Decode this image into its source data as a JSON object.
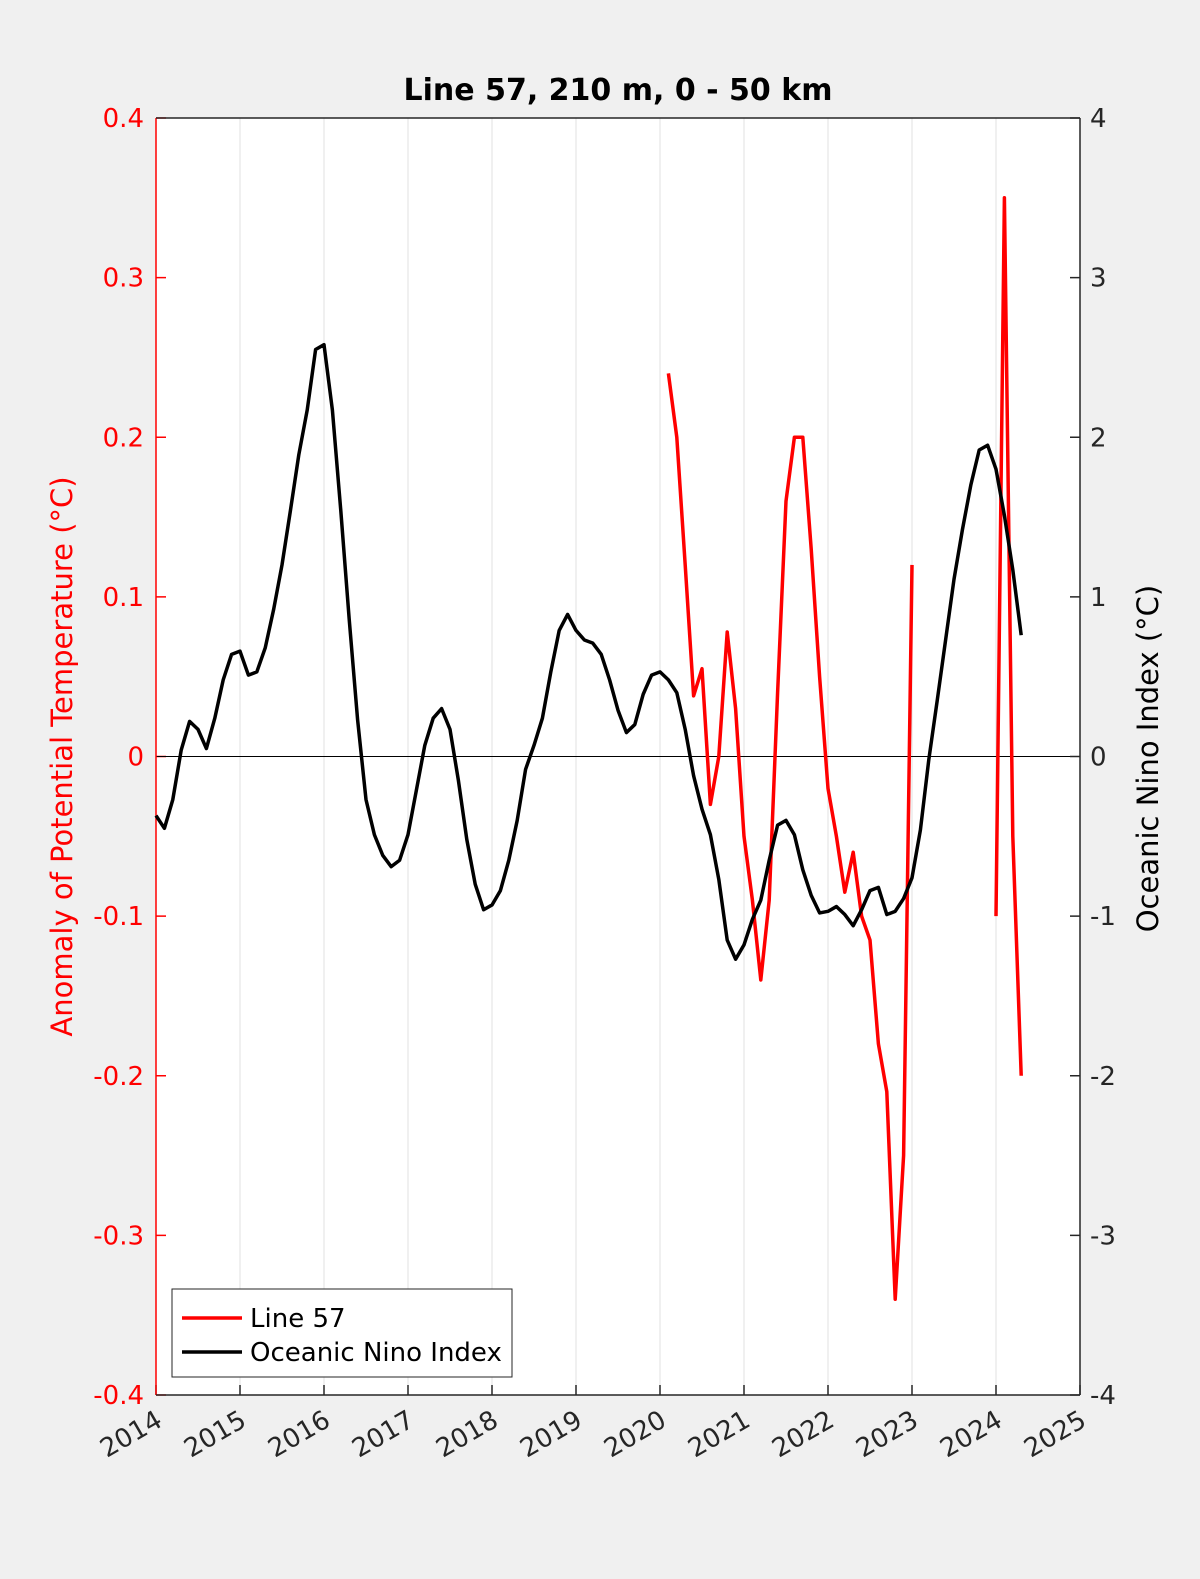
{
  "chart_data": {
    "type": "line",
    "title": "Line 57, 210 m, 0 - 50 km",
    "ylabel": "Anomaly of Potential Temperature (°C)",
    "y2label": "Oceanic Nino Index (°C)",
    "x": [
      2014.0,
      2014.1,
      2014.2,
      2014.3,
      2014.4,
      2014.5,
      2014.6,
      2014.7,
      2014.8,
      2014.9,
      2015.0,
      2015.1,
      2015.2,
      2015.3,
      2015.4,
      2015.5,
      2015.6,
      2015.7,
      2015.8,
      2015.9,
      2016.0,
      2016.1,
      2016.2,
      2016.3,
      2016.4,
      2016.5,
      2016.6,
      2016.7,
      2016.8,
      2016.9,
      2017.0,
      2017.1,
      2017.2,
      2017.3,
      2017.4,
      2017.5,
      2017.6,
      2017.7,
      2017.8,
      2017.9,
      2018.0,
      2018.1,
      2018.2,
      2018.3,
      2018.4,
      2018.5,
      2018.6,
      2018.7,
      2018.8,
      2018.9,
      2019.0,
      2019.1,
      2019.2,
      2019.3,
      2019.4,
      2019.5,
      2019.6,
      2019.7,
      2019.8,
      2019.9,
      2020.0,
      2020.1,
      2020.2,
      2020.3,
      2020.4,
      2020.5,
      2020.6,
      2020.7,
      2020.8,
      2020.9,
      2021.0,
      2021.1,
      2021.2,
      2021.3,
      2021.4,
      2021.5,
      2021.6,
      2021.7,
      2021.8,
      2021.9,
      2022.0,
      2022.1,
      2022.2,
      2022.3,
      2022.4,
      2022.5,
      2022.6,
      2022.7,
      2022.8,
      2022.9,
      2023.0,
      2023.1,
      2023.2,
      2023.3,
      2023.4,
      2023.5,
      2023.6,
      2023.7,
      2023.8,
      2023.9,
      2024.0,
      2024.1,
      2024.2,
      2024.3
    ],
    "series": [
      {
        "name": "Line 57",
        "color": "#ff0000",
        "axis": "y",
        "values": [
          null,
          null,
          null,
          null,
          null,
          null,
          null,
          null,
          null,
          null,
          null,
          null,
          null,
          null,
          null,
          null,
          null,
          null,
          null,
          null,
          null,
          null,
          null,
          null,
          null,
          null,
          null,
          null,
          null,
          null,
          null,
          null,
          null,
          null,
          null,
          null,
          null,
          null,
          null,
          null,
          null,
          null,
          null,
          null,
          null,
          null,
          null,
          null,
          null,
          null,
          null,
          null,
          null,
          null,
          null,
          null,
          null,
          null,
          null,
          null,
          null,
          0.24,
          0.2,
          0.12,
          0.038,
          0.055,
          -0.03,
          0.0,
          0.078,
          0.03,
          -0.05,
          -0.09,
          -0.14,
          -0.09,
          0.04,
          0.16,
          0.2,
          0.2,
          0.13,
          0.05,
          -0.02,
          -0.05,
          -0.085,
          -0.06,
          -0.1,
          -0.115,
          -0.18,
          -0.21,
          -0.34,
          -0.25,
          0.12,
          null,
          null,
          null,
          null,
          null,
          null,
          null,
          null,
          null,
          -0.1,
          0.35,
          -0.05,
          -0.2
        ]
      },
      {
        "name": "Oceanic Nino Index",
        "color": "#000000",
        "axis": "y2",
        "values": [
          -0.37,
          -0.45,
          -0.27,
          0.04,
          0.22,
          0.17,
          0.05,
          0.24,
          0.48,
          0.64,
          0.66,
          0.51,
          0.53,
          0.68,
          0.92,
          1.2,
          1.54,
          1.89,
          2.17,
          2.55,
          2.58,
          2.17,
          1.54,
          0.86,
          0.23,
          -0.27,
          -0.49,
          -0.62,
          -0.69,
          -0.65,
          -0.49,
          -0.21,
          0.07,
          0.24,
          0.3,
          0.17,
          -0.15,
          -0.52,
          -0.8,
          -0.96,
          -0.93,
          -0.84,
          -0.65,
          -0.4,
          -0.08,
          0.07,
          0.24,
          0.53,
          0.79,
          0.89,
          0.79,
          0.73,
          0.71,
          0.64,
          0.48,
          0.29,
          0.15,
          0.2,
          0.39,
          0.51,
          0.53,
          0.48,
          0.4,
          0.17,
          -0.12,
          -0.33,
          -0.49,
          -0.77,
          -1.15,
          -1.27,
          -1.18,
          -1.02,
          -0.9,
          -0.65,
          -0.43,
          -0.4,
          -0.49,
          -0.71,
          -0.87,
          -0.98,
          -0.97,
          -0.94,
          -0.99,
          -1.06,
          -0.96,
          -0.84,
          -0.82,
          -0.99,
          -0.97,
          -0.89,
          -0.76,
          -0.46,
          -0.02,
          0.35,
          0.73,
          1.11,
          1.42,
          1.7,
          1.92,
          1.95,
          1.8,
          1.51,
          1.17,
          0.76
        ]
      }
    ],
    "xlim": [
      2014,
      2025
    ],
    "xticks": [
      2014,
      2015,
      2016,
      2017,
      2018,
      2019,
      2020,
      2021,
      2022,
      2023,
      2024,
      2025
    ],
    "ylim": [
      -0.4,
      0.4
    ],
    "yticks": [
      -0.4,
      -0.3,
      -0.2,
      -0.1,
      0,
      0.1,
      0.2,
      0.3,
      0.4
    ],
    "y2lim": [
      -4,
      4
    ],
    "y2ticks": [
      -4,
      -3,
      -2,
      -1,
      0,
      1,
      2,
      3,
      4
    ],
    "ycolor": "#ff0000",
    "grid": "x",
    "legend": "lower left"
  }
}
